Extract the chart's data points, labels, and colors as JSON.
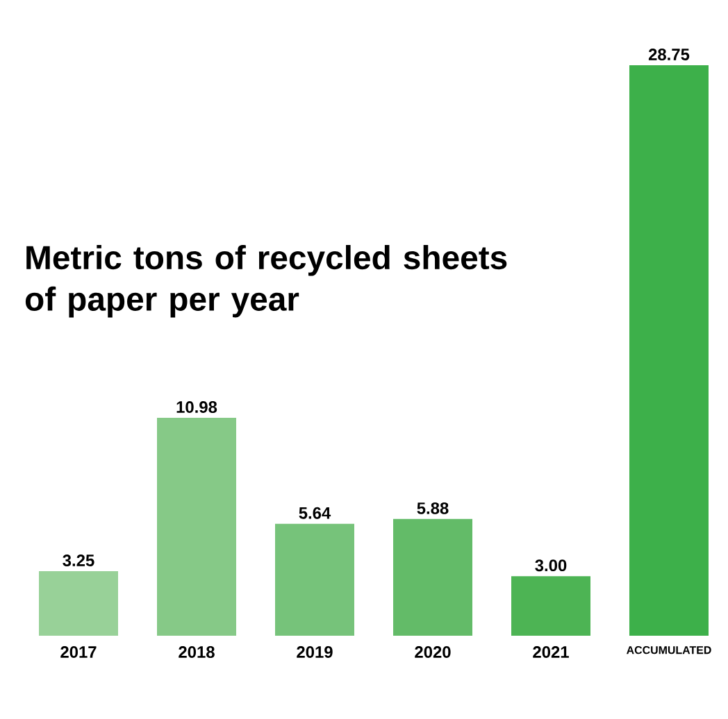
{
  "chart_data": {
    "type": "bar",
    "title": "Metric tons of recycled sheets of paper per year",
    "categories": [
      "2017",
      "2018",
      "2019",
      "2020",
      "2021",
      "ACCUMULATED"
    ],
    "values": [
      3.25,
      10.98,
      5.64,
      5.88,
      3.0,
      28.75
    ],
    "value_labels": [
      "3.25",
      "10.98",
      "5.64",
      "5.88",
      "3.00",
      "28.75"
    ],
    "colors": [
      "#98d198",
      "#86c987",
      "#76c37a",
      "#63bb68",
      "#4db454",
      "#3db04a"
    ]
  }
}
